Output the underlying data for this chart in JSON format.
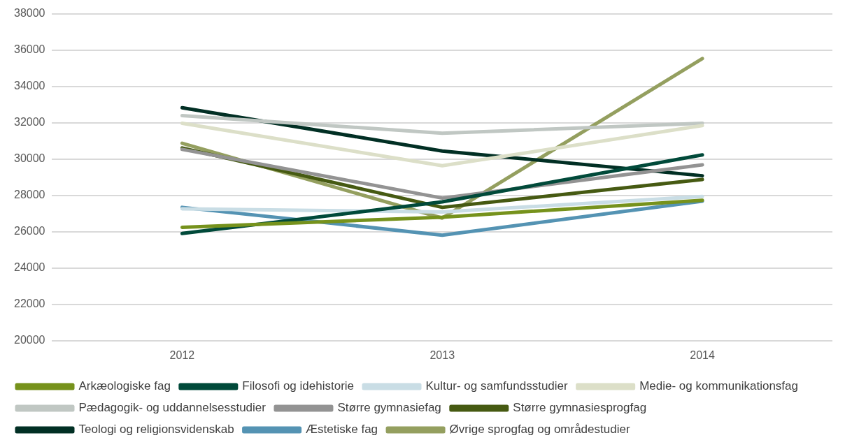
{
  "chart_data": {
    "type": "line",
    "categories": [
      "2012",
      "2013",
      "2014"
    ],
    "ylim": [
      20000,
      38000
    ],
    "yticks": [
      20000,
      22000,
      24000,
      26000,
      28000,
      30000,
      32000,
      34000,
      36000,
      38000
    ],
    "grid": "y",
    "legend": "bottom",
    "marker": "none",
    "line_style": "solid",
    "series": [
      {
        "name": "Arkæologiske fag",
        "color": "#76921c",
        "values": [
          26240,
          26800,
          27730
        ]
      },
      {
        "name": "Filosofi og idehistorie",
        "color": "#014a3a",
        "values": [
          25900,
          27640,
          30230
        ]
      },
      {
        "name": "Kultur- og samfundsstudier",
        "color": "#c9dde5",
        "values": [
          27260,
          27090,
          27940
        ]
      },
      {
        "name": "Medie- og kommunikationsfag",
        "color": "#dcdfc8",
        "values": [
          31970,
          29630,
          31840
        ]
      },
      {
        "name": "Pædagogik- og uddannelsesstudier",
        "color": "#c0c7c3",
        "values": [
          32390,
          31420,
          31970
        ]
      },
      {
        "name": "Større gymnasiefag",
        "color": "#939393",
        "values": [
          30530,
          27850,
          29680
        ]
      },
      {
        "name": "Større gymnasiesprogfag",
        "color": "#465a12",
        "values": [
          30610,
          27340,
          28870
        ]
      },
      {
        "name": "Teologi og religionsvidenskab",
        "color": "#012f24",
        "values": [
          32820,
          30440,
          29080
        ]
      },
      {
        "name": "Æstetiske fag",
        "color": "#5493b3",
        "values": [
          27340,
          25810,
          27680
        ]
      },
      {
        "name": "Øvrige sprogfag og områdestudier",
        "color": "#949f5f",
        "values": [
          30870,
          26750,
          35530
        ]
      }
    ]
  }
}
